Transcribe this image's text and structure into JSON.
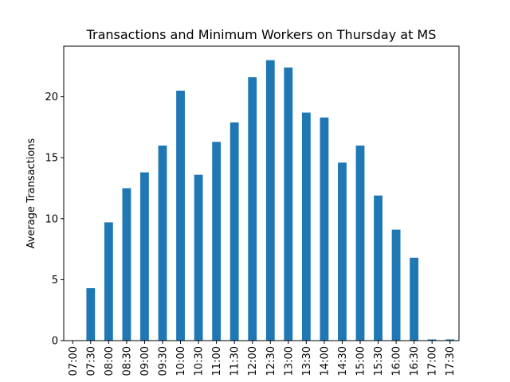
{
  "chart_data": {
    "type": "bar",
    "title": "Transactions and Minimum Workers on Thursday at MS",
    "xlabel": "",
    "ylabel": "Average Transactions",
    "categories": [
      "07:00",
      "07:30",
      "08:00",
      "08:30",
      "09:00",
      "09:30",
      "10:00",
      "10:30",
      "11:00",
      "11:30",
      "12:00",
      "12:30",
      "13:00",
      "13:30",
      "14:00",
      "14:30",
      "15:00",
      "15:30",
      "16:00",
      "16:30",
      "17:00",
      "17:30"
    ],
    "values": [
      0,
      4.3,
      9.7,
      12.5,
      13.8,
      16.0,
      20.5,
      13.6,
      16.3,
      17.9,
      21.6,
      23.0,
      22.4,
      18.7,
      18.3,
      14.6,
      16.0,
      11.9,
      9.1,
      6.8,
      0.1,
      0.1
    ],
    "ylim": [
      0,
      24.15
    ],
    "yticks": [
      0,
      5,
      10,
      15,
      20
    ],
    "bar_color": "#1f77b4",
    "grid": false,
    "legend": "none"
  }
}
